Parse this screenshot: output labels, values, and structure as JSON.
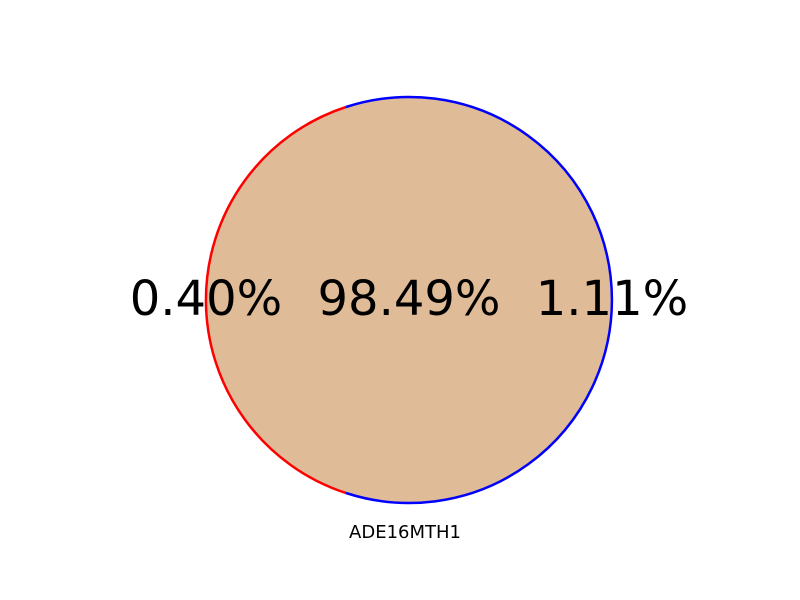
{
  "chart_data": {
    "type": "venn",
    "regions": [
      {
        "label": "0.40%",
        "value": 0.4
      },
      {
        "label": "98.49%",
        "value": 98.49
      },
      {
        "label": "1.11%",
        "value": 1.11
      }
    ],
    "set_label": "ADE16MTH1",
    "colors": {
      "fill": "#e0bb97",
      "left_outline": "#ff0000",
      "right_outline": "#0000ff"
    }
  }
}
